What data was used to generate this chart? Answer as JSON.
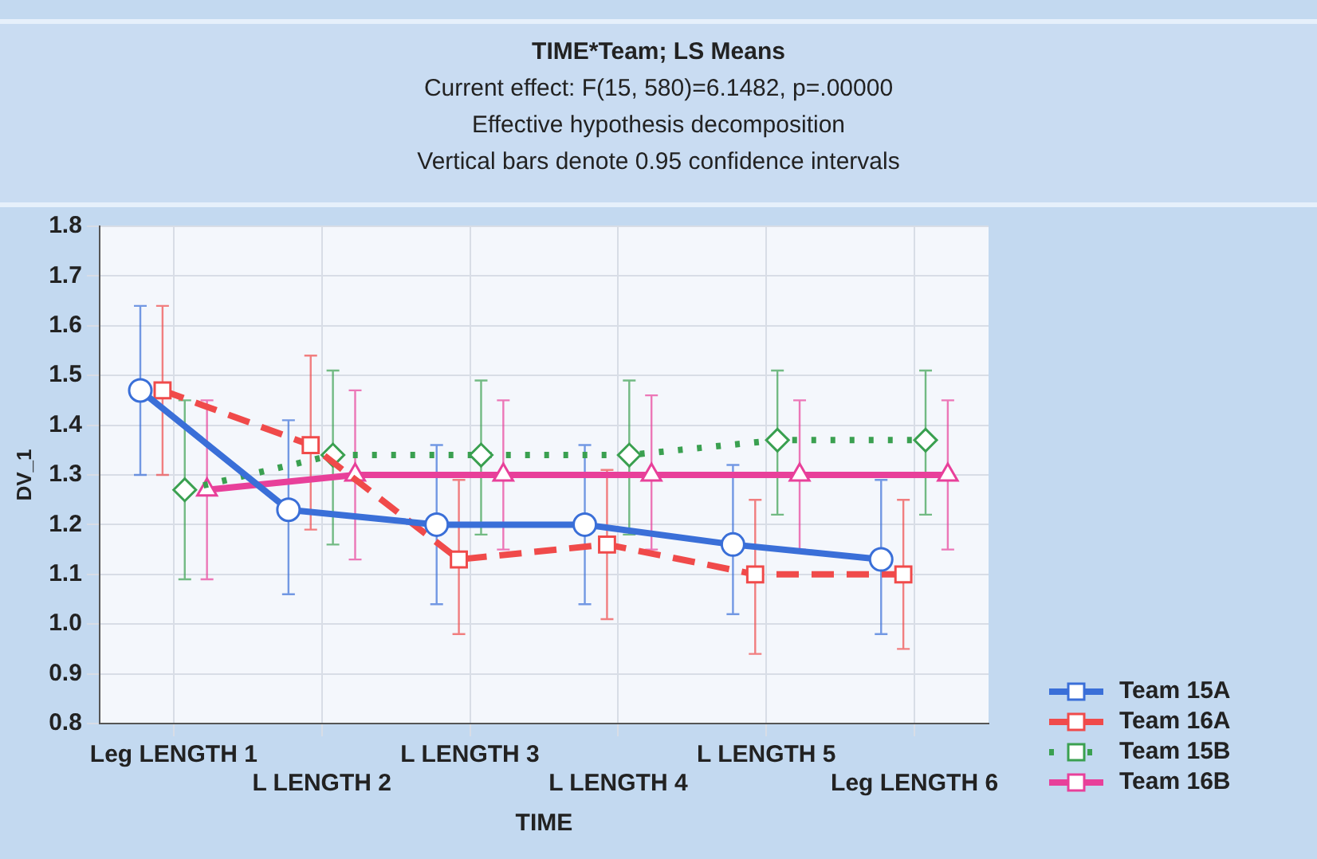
{
  "chart_data": {
    "type": "line",
    "title": "TIME*Team; LS Means",
    "subtitle": "Current effect: F(15, 580)=6.1482, p=.00000",
    "annotations": [
      "Effective hypothesis decomposition",
      "Vertical bars denote 0.95 confidence intervals"
    ],
    "xlabel": "TIME",
    "ylabel": "DV_1",
    "categories": [
      "Leg LENGTH 1",
      "L LENGTH 2",
      "L LENGTH 3",
      "L LENGTH 4",
      "L LENGTH 5",
      "Leg LENGTH 6"
    ],
    "ylim": [
      0.8,
      1.8
    ],
    "yticks": [
      {
        "value": 0.8,
        "label": "0.8"
      },
      {
        "value": 0.9,
        "label": "0.9"
      },
      {
        "value": 1,
        "label": "1.0"
      },
      {
        "value": 1.1,
        "label": "1.1"
      },
      {
        "value": 1.2,
        "label": "1.2"
      },
      {
        "value": 1.3,
        "label": "1.3"
      },
      {
        "value": 1.4,
        "label": "1.4"
      },
      {
        "value": 1.5,
        "label": "1.5"
      },
      {
        "value": 1.6,
        "label": "1.6"
      },
      {
        "value": 1.7,
        "label": "1.7"
      },
      {
        "value": 1.8,
        "label": "1.8"
      }
    ],
    "grid": true,
    "legend": "bottom right",
    "series": [
      {
        "name": "Team 15A",
        "color": "#3a6fd8",
        "marker": "circle",
        "line_style": "solid",
        "values": [
          1.47,
          1.23,
          1.2,
          1.2,
          1.16,
          1.13
        ],
        "errors": [
          [
            1.3,
            1.64
          ],
          [
            1.06,
            1.41
          ],
          [
            1.04,
            1.36
          ],
          [
            1.04,
            1.36
          ],
          [
            1.02,
            1.32
          ],
          [
            0.98,
            1.29
          ]
        ]
      },
      {
        "name": "Team 16A",
        "color": "#f04a4a",
        "marker": "square",
        "line_style": "dashed",
        "values": [
          1.47,
          1.36,
          1.13,
          1.16,
          1.1,
          1.1
        ],
        "errors": [
          [
            1.3,
            1.64
          ],
          [
            1.19,
            1.54
          ],
          [
            0.98,
            1.29
          ],
          [
            1.01,
            1.31
          ],
          [
            0.94,
            1.25
          ],
          [
            0.95,
            1.25
          ]
        ]
      },
      {
        "name": "Team 15B",
        "color": "#3aa050",
        "marker": "diamond",
        "line_style": "dotted",
        "values": [
          1.27,
          1.34,
          1.34,
          1.34,
          1.37,
          1.37
        ],
        "errors": [
          [
            1.09,
            1.45
          ],
          [
            1.16,
            1.51
          ],
          [
            1.18,
            1.49
          ],
          [
            1.18,
            1.49
          ],
          [
            1.22,
            1.51
          ],
          [
            1.22,
            1.51
          ]
        ]
      },
      {
        "name": "Team 16B",
        "color": "#e8409a",
        "marker": "triangle",
        "line_style": "solid",
        "values": [
          1.27,
          1.3,
          1.3,
          1.3,
          1.3,
          1.3
        ],
        "errors": [
          [
            1.09,
            1.45
          ],
          [
            1.13,
            1.47
          ],
          [
            1.15,
            1.45
          ],
          [
            1.15,
            1.46
          ],
          [
            1.15,
            1.45
          ],
          [
            1.15,
            1.45
          ]
        ]
      }
    ]
  }
}
